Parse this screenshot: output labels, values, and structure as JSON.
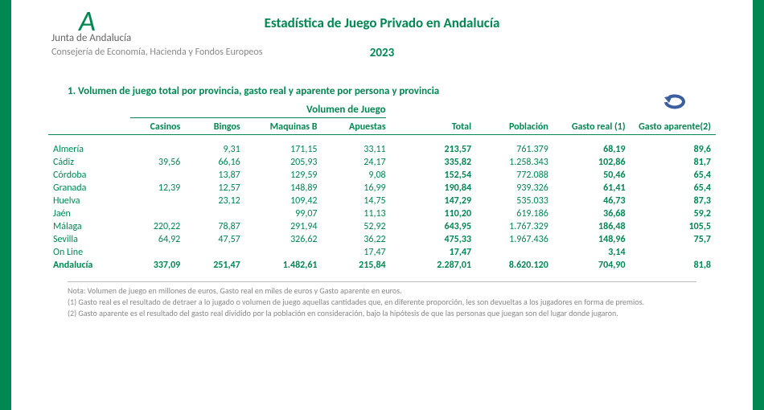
{
  "header": {
    "logo_letter": "A",
    "junta": "Junta de Andalucía",
    "consejeria": "Consejería de Economía, Hacienda y Fondos Europeos",
    "main_title": "Estadística de Juego Privado en Andalucía",
    "year": "2023"
  },
  "section": {
    "title": "1. Volumen de juego total por provincia, gasto real y aparente por persona y provincia"
  },
  "table": {
    "group_label": "Volumen de Juego",
    "columns": {
      "province": "",
      "casinos": "Casinos",
      "bingos": "Bingos",
      "maquinas": "Maquinas B",
      "apuestas": "Apuestas",
      "total": "Total",
      "poblacion": "Población",
      "gasto_real": "Gasto real (1)",
      "gasto_aparente": "Gasto aparente(2)"
    },
    "rows": [
      {
        "province": "Almería",
        "casinos": "",
        "bingos": "9,31",
        "maquinas": "171,15",
        "apuestas": "33,11",
        "total": "213,57",
        "poblacion": "761.379",
        "gasto_real": "68,19",
        "gasto_aparente": "89,6"
      },
      {
        "province": "Cádiz",
        "casinos": "39,56",
        "bingos": "66,16",
        "maquinas": "205,93",
        "apuestas": "24,17",
        "total": "335,82",
        "poblacion": "1.258.343",
        "gasto_real": "102,86",
        "gasto_aparente": "81,7"
      },
      {
        "province": "Córdoba",
        "casinos": "",
        "bingos": "13,87",
        "maquinas": "129,59",
        "apuestas": "9,08",
        "total": "152,54",
        "poblacion": "772.088",
        "gasto_real": "50,46",
        "gasto_aparente": "65,4"
      },
      {
        "province": "Granada",
        "casinos": "12,39",
        "bingos": "12,57",
        "maquinas": "148,89",
        "apuestas": "16,99",
        "total": "190,84",
        "poblacion": "939.326",
        "gasto_real": "61,41",
        "gasto_aparente": "65,4"
      },
      {
        "province": "Huelva",
        "casinos": "",
        "bingos": "23,12",
        "maquinas": "109,42",
        "apuestas": "14,75",
        "total": "147,29",
        "poblacion": "535.033",
        "gasto_real": "46,73",
        "gasto_aparente": "87,3"
      },
      {
        "province": "Jaén",
        "casinos": "",
        "bingos": "",
        "maquinas": "99,07",
        "apuestas": "11,13",
        "total": "110,20",
        "poblacion": "619.186",
        "gasto_real": "36,68",
        "gasto_aparente": "59,2"
      },
      {
        "province": "Málaga",
        "casinos": "220,22",
        "bingos": "78,87",
        "maquinas": "291,94",
        "apuestas": "52,92",
        "total": "643,95",
        "poblacion": "1.767.329",
        "gasto_real": "186,48",
        "gasto_aparente": "105,5"
      },
      {
        "province": "Sevilla",
        "casinos": "64,92",
        "bingos": "47,57",
        "maquinas": "326,62",
        "apuestas": "36,22",
        "total": "475,33",
        "poblacion": "1.967.436",
        "gasto_real": "148,96",
        "gasto_aparente": "75,7"
      },
      {
        "province": "On Line",
        "casinos": "",
        "bingos": "",
        "maquinas": "",
        "apuestas": "17,47",
        "total": "17,47",
        "poblacion": "",
        "gasto_real": "3,14",
        "gasto_aparente": ""
      }
    ],
    "totals": {
      "province": "Andalucía",
      "casinos": "337,09",
      "bingos": "251,47",
      "maquinas": "1.482,61",
      "apuestas": "215,84",
      "total": "2.287,01",
      "poblacion": "8.620.120",
      "gasto_real": "704,90",
      "gasto_aparente": "81,8"
    }
  },
  "notes": {
    "n1": "Nota: Volumen de juego en millones de euros, Gasto real en miles de euros y Gasto aparente en euros.",
    "n2": "(1) Gasto real es el resultado de detraer a lo jugado o volumen de juego aquellas cantidades que, en diferente proporción, les son devueltas a los jugadores en forma de premios.",
    "n3": "(2) Gasto aparente es el resultado del gasto real dividido por la población en consideración, bajo la hipótesis de que las personas que juegan son del lugar donde jugaron."
  },
  "colors": {
    "brand_green": "#008752",
    "text_gray": "#888888"
  }
}
